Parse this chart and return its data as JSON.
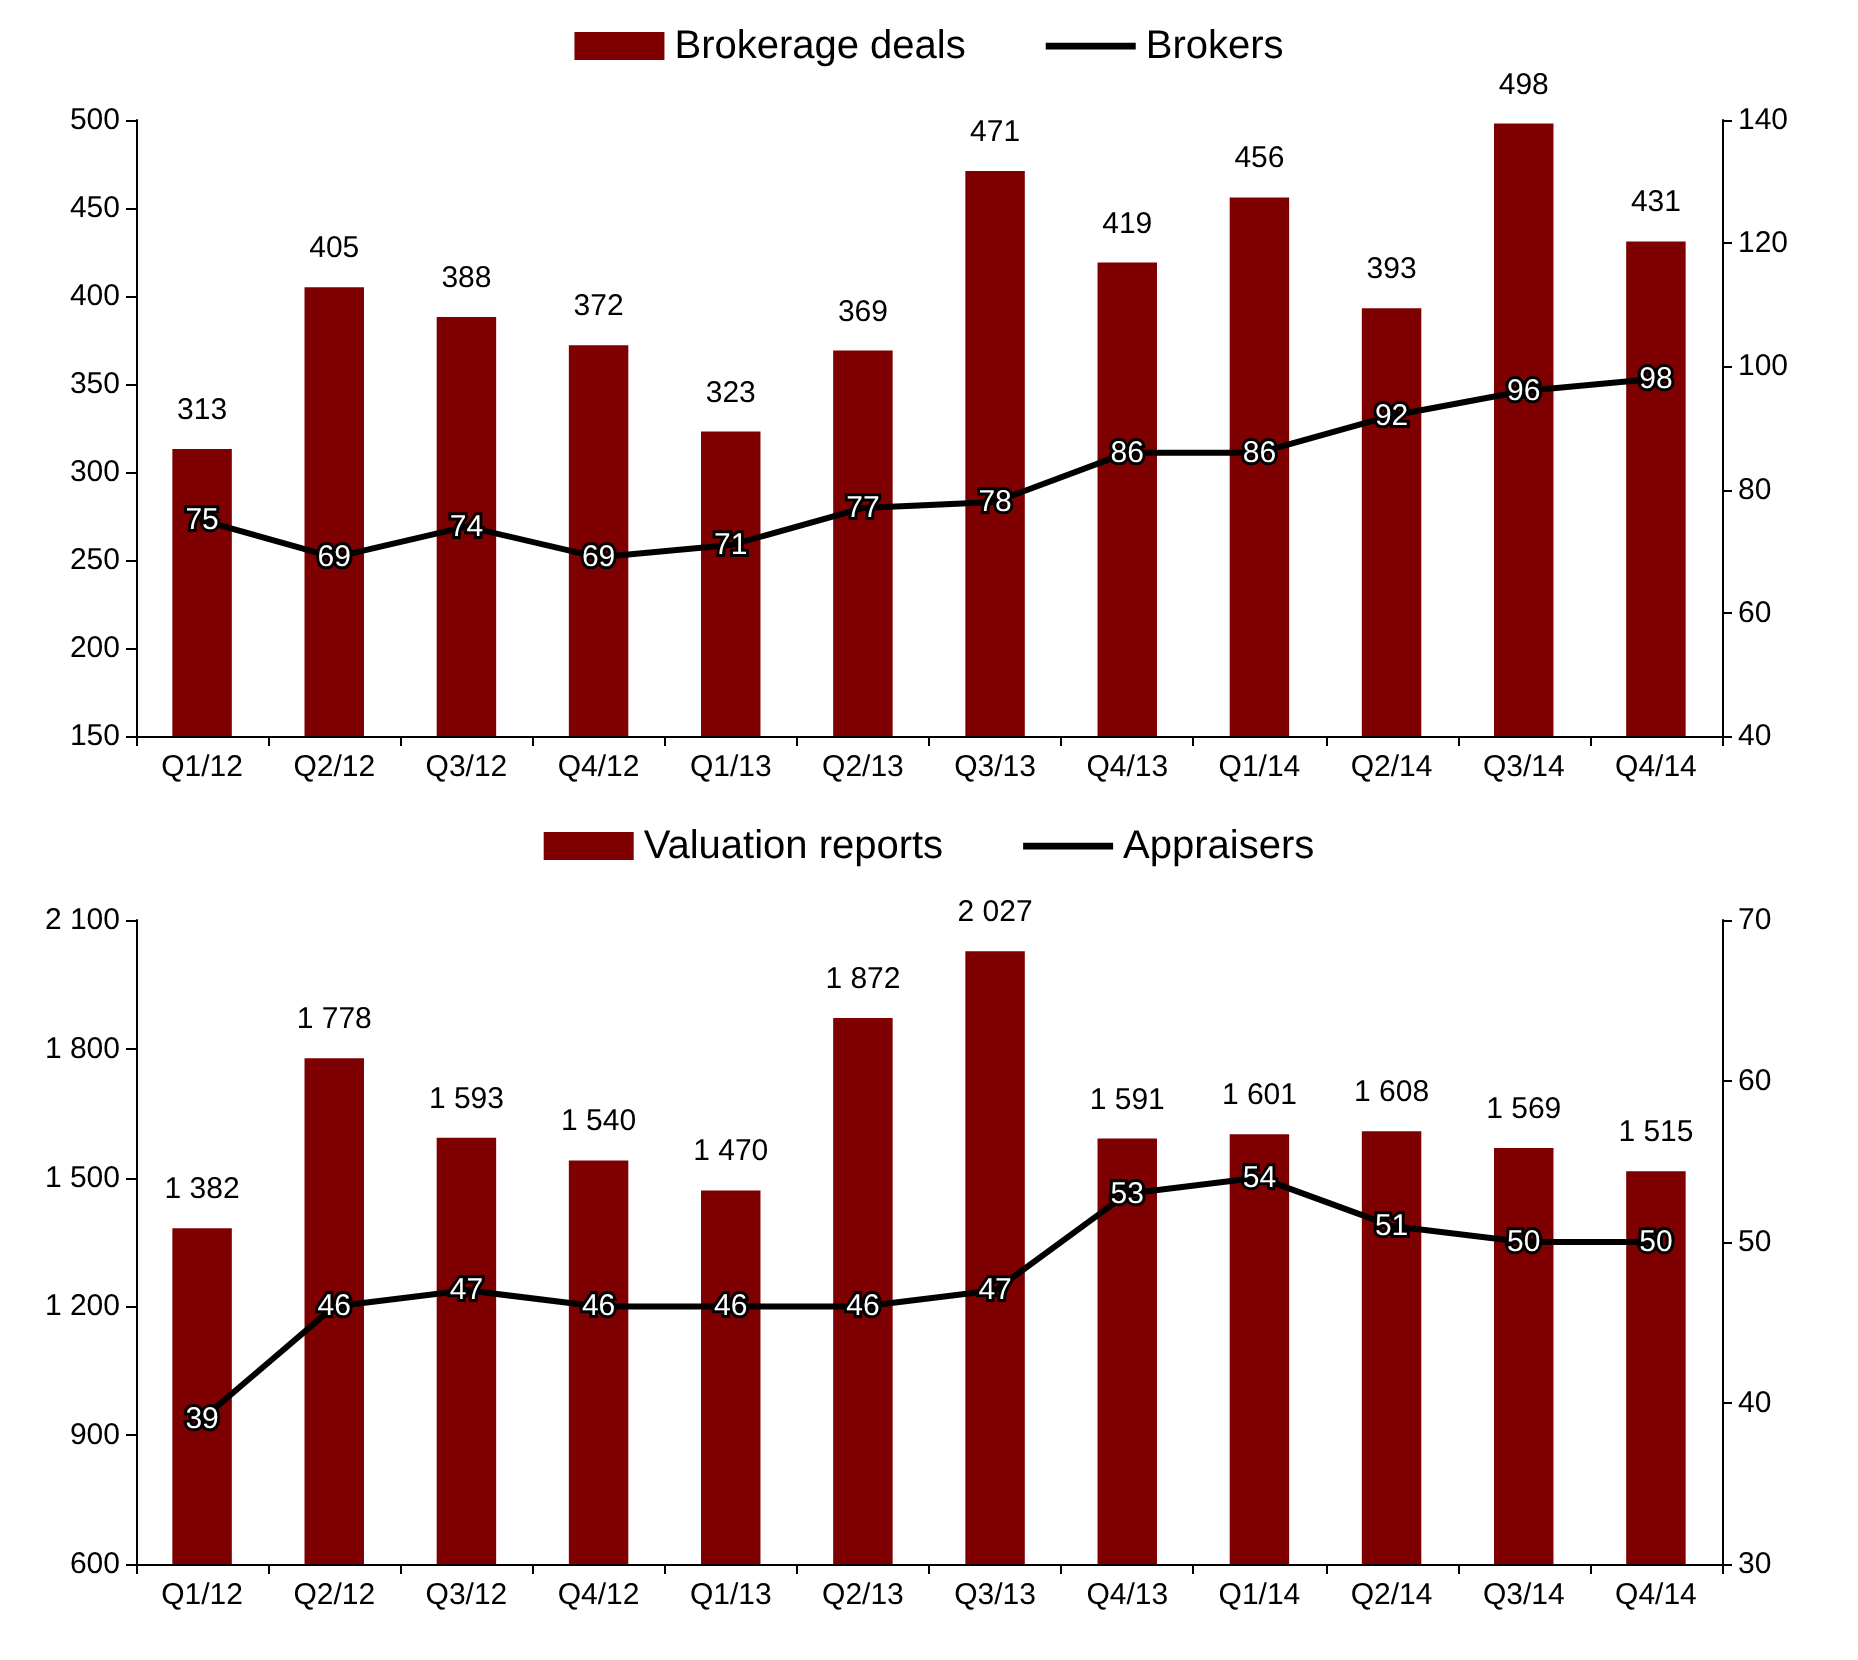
{
  "chart_data": [
    {
      "type": "bar",
      "categories": [
        "Q1/12",
        "Q2/12",
        "Q3/12",
        "Q4/12",
        "Q1/13",
        "Q2/13",
        "Q3/13",
        "Q4/13",
        "Q1/14",
        "Q2/14",
        "Q3/14",
        "Q4/14"
      ],
      "series": [
        {
          "name": "Brokerage deals",
          "color": "#7f0000",
          "values": [
            313,
            405,
            388,
            372,
            323,
            369,
            471,
            419,
            456,
            393,
            498,
            431
          ]
        },
        {
          "name": "Brokers",
          "type": "line",
          "axis": "y2",
          "color": "#000000",
          "values": [
            75,
            69,
            74,
            69,
            71,
            77,
            78,
            86,
            86,
            92,
            96,
            98
          ]
        }
      ],
      "ylim": [
        150,
        500
      ],
      "yticks": [
        150,
        200,
        250,
        300,
        350,
        400,
        450,
        500
      ],
      "y2lim": [
        40,
        140
      ],
      "y2ticks": [
        40,
        60,
        80,
        100,
        120,
        140
      ],
      "data_labels": true,
      "legend": "top",
      "grid": false,
      "marker": "none",
      "line_style": "solid"
    },
    {
      "type": "bar",
      "categories": [
        "Q1/12",
        "Q2/12",
        "Q3/12",
        "Q4/12",
        "Q1/13",
        "Q2/13",
        "Q3/13",
        "Q4/13",
        "Q1/14",
        "Q2/14",
        "Q3/14",
        "Q4/14"
      ],
      "series": [
        {
          "name": "Valuation reports",
          "color": "#7f0000",
          "values": [
            1382,
            1778,
            1593,
            1540,
            1470,
            1872,
            2027,
            1591,
            1601,
            1608,
            1569,
            1515
          ],
          "value_labels": [
            "1 382",
            "1 778",
            "1 593",
            "1 540",
            "1 470",
            "1 872",
            "2 027",
            "1 591",
            "1 601",
            "1 608",
            "1 569",
            "1 515"
          ]
        },
        {
          "name": "Appraisers",
          "type": "line",
          "axis": "y2",
          "color": "#000000",
          "values": [
            39,
            46,
            47,
            46,
            46,
            46,
            47,
            53,
            54,
            51,
            50,
            50
          ]
        }
      ],
      "ylim": [
        600,
        2100
      ],
      "yticks": [
        600,
        900,
        {
          "value": 1200,
          "label": "1 200"
        },
        {
          "value": 1500,
          "label": "1 500"
        },
        {
          "value": 1800,
          "label": "1 800"
        },
        {
          "value": 2100,
          "label": "2 100"
        }
      ],
      "y2lim": [
        30,
        70
      ],
      "y2ticks": [
        30,
        40,
        50,
        60,
        70
      ],
      "data_labels": true,
      "legend": "top",
      "grid": false,
      "marker": "none",
      "line_style": "solid"
    }
  ]
}
